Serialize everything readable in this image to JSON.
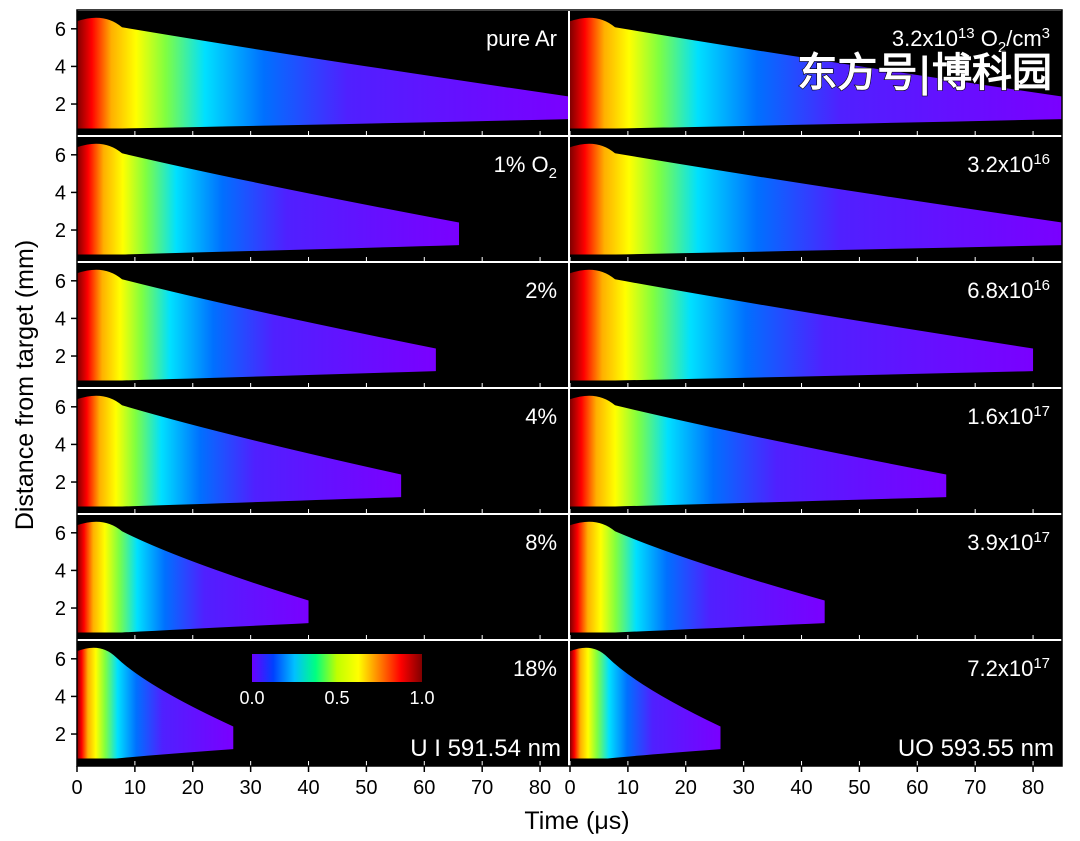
{
  "watermark": "东方号|博科园",
  "chart_data": {
    "type": "heatmap",
    "title": "",
    "xlabel": "Time (μs)",
    "ylabel": "Distance from target (mm)",
    "xlim": [
      0,
      85
    ],
    "ylim": [
      0.3,
      7
    ],
    "x_ticks": [
      0,
      10,
      20,
      30,
      40,
      50,
      60,
      70,
      80
    ],
    "y_ticks": [
      2,
      4,
      6
    ],
    "grid": "3 columns × 6 rows",
    "colorbar": {
      "min_label": "0.0",
      "mid_label": "0.5",
      "max_label": "1.0",
      "range": [
        0,
        1
      ],
      "colors": [
        "#6a00ff",
        "#0040ff",
        "#00c0ff",
        "#00ff80",
        "#c0ff00",
        "#ffff00",
        "#ff8000",
        "#ff0000",
        "#800000"
      ]
    },
    "columns": [
      {
        "emission_label": "U I 591.54 nm",
        "panels": [
          {
            "label": "pure Ar",
            "extent_us": 85
          },
          {
            "label": "1% O",
            "label_sub": "2",
            "extent_us": 66
          },
          {
            "label": "2%",
            "extent_us": 62
          },
          {
            "label": "4%",
            "extent_us": 56
          },
          {
            "label": "8%",
            "extent_us": 40
          },
          {
            "label": "18%",
            "extent_us": 27
          }
        ]
      },
      {
        "emission_label": "UO 593.55 nm",
        "panels": [
          {
            "label": "3.2x10",
            "label_sup": "13",
            "label_after": " O",
            "label_sub": "2",
            "label_after2": "/cm",
            "label_sup2": "3",
            "extent_us": 85
          },
          {
            "label": "3.2x10",
            "label_sup": "16",
            "extent_us": 85
          },
          {
            "label": "6.8x10",
            "label_sup": "16",
            "extent_us": 80
          },
          {
            "label": "1.6x10",
            "label_sup": "17",
            "extent_us": 65
          },
          {
            "label": "3.9x10",
            "label_sup": "17",
            "extent_us": 44
          },
          {
            "label": "7.2x10",
            "label_sup": "17",
            "extent_us": 26
          }
        ]
      }
    ]
  }
}
